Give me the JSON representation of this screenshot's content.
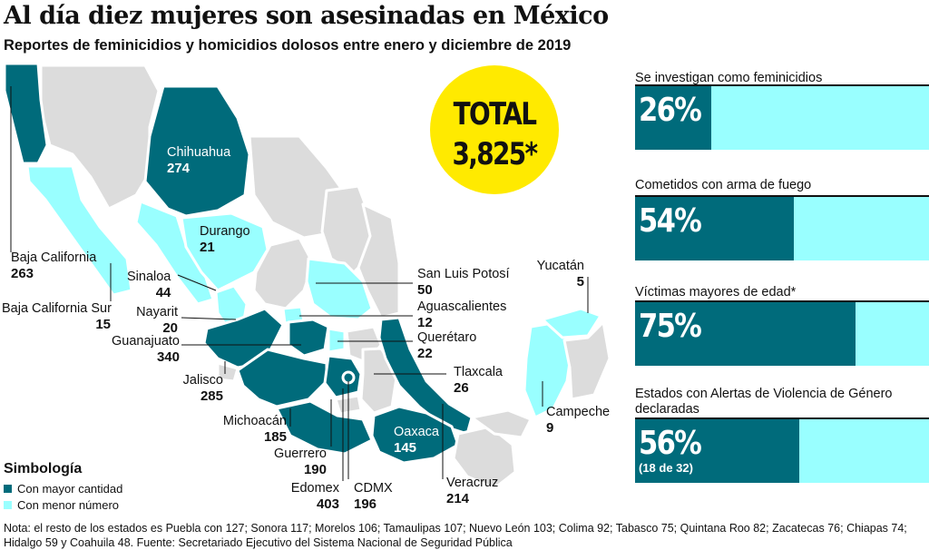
{
  "title": "Al día diez mujeres son asesinadas en México",
  "subtitle": "Reportes de feminicidios y homicidios dolosos entre enero y diciembre de 2019",
  "total": {
    "label": "TOTAL",
    "value": "3,825*"
  },
  "colors": {
    "high": "#006b7b",
    "low": "#99ffff",
    "other": "#dcdcdc",
    "total_bg": "#ffea00"
  },
  "states": [
    {
      "name": "Chihuahua",
      "value": "274",
      "category": "high"
    },
    {
      "name": "Durango",
      "value": "21",
      "category": "low"
    },
    {
      "name": "Baja California",
      "value": "263",
      "category": "high"
    },
    {
      "name": "Sinaloa",
      "value": "44",
      "category": "low"
    },
    {
      "name": "Baja California Sur",
      "value": "15",
      "category": "low"
    },
    {
      "name": "Nayarit",
      "value": "20",
      "category": "low"
    },
    {
      "name": "Guanajuato",
      "value": "340",
      "category": "high"
    },
    {
      "name": "Jalisco",
      "value": "285",
      "category": "high"
    },
    {
      "name": "Michoacán",
      "value": "185",
      "category": "high"
    },
    {
      "name": "Guerrero",
      "value": "190",
      "category": "high"
    },
    {
      "name": "Edomex",
      "value": "403",
      "category": "high"
    },
    {
      "name": "CDMX",
      "value": "196",
      "category": "high"
    },
    {
      "name": "Veracruz",
      "value": "214",
      "category": "high"
    },
    {
      "name": "Oaxaca",
      "value": "145",
      "category": "high"
    },
    {
      "name": "San Luis Potosí",
      "value": "50",
      "category": "low"
    },
    {
      "name": "Aguascalientes",
      "value": "12",
      "category": "low"
    },
    {
      "name": "Querétaro",
      "value": "22",
      "category": "low"
    },
    {
      "name": "Tlaxcala",
      "value": "26",
      "category": "low"
    },
    {
      "name": "Yucatán",
      "value": "5",
      "category": "low"
    },
    {
      "name": "Campeche",
      "value": "9",
      "category": "low"
    }
  ],
  "chart_data": {
    "type": "bar",
    "categories": [
      "Se investigan como feminicidios",
      "Cometidos con arma de fuego",
      "Víctimas mayores de edad*",
      "Estados con Alertas de Violencia de Género declaradas"
    ],
    "values": [
      26,
      54,
      75,
      56
    ],
    "value_labels": [
      "26%",
      "54%",
      "75%",
      "56%"
    ],
    "notes": [
      "",
      "",
      "",
      "(18 de 32)"
    ],
    "ylim": [
      0,
      100
    ]
  },
  "legend": {
    "title": "Simbología",
    "items": [
      {
        "label": "Con mayor cantidad",
        "color": "#006b7b"
      },
      {
        "label": "Con menor número",
        "color": "#99ffff"
      }
    ]
  },
  "footnote": "Nota: el resto de los estados es Puebla con 127; Sonora 117; Morelos 106; Tamaulipas 107; Nuevo León 103; Colima 92; Tabasco 75; Quintana Roo 82; Zacatecas 76; Chiapas 74; Hidalgo 59  y Coahuila 48. Fuente: Secretariado Ejecutivo del Sistema Nacional de Seguridad Pública"
}
